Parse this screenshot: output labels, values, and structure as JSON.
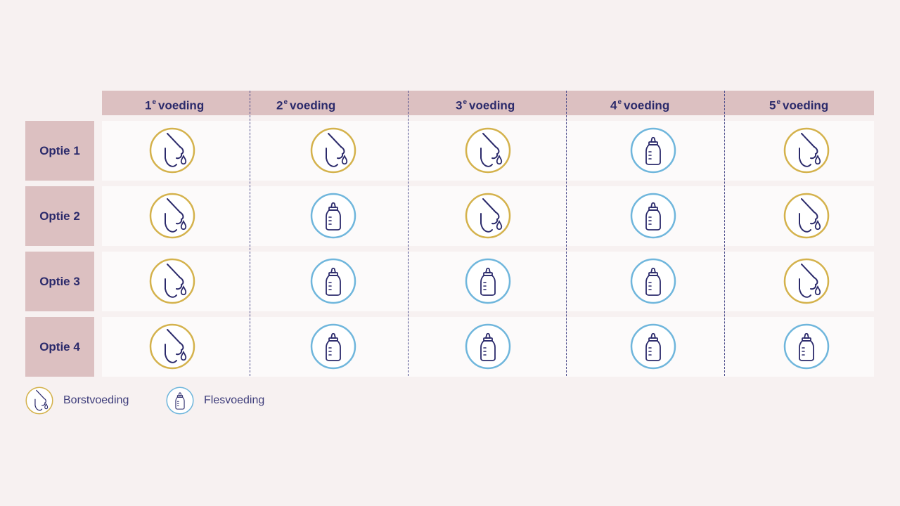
{
  "columns": [
    {
      "num": "1",
      "sup": "e",
      "label": "voeding"
    },
    {
      "num": "2",
      "sup": "e",
      "label": "voeding"
    },
    {
      "num": "3",
      "sup": "e",
      "label": "voeding"
    },
    {
      "num": "4",
      "sup": "e",
      "label": "voeding"
    },
    {
      "num": "5",
      "sup": "e",
      "label": "voeding"
    }
  ],
  "rows": [
    {
      "label": "Optie 1",
      "cells": [
        "breast",
        "breast",
        "breast",
        "bottle",
        "breast"
      ]
    },
    {
      "label": "Optie 2",
      "cells": [
        "breast",
        "bottle",
        "breast",
        "bottle",
        "breast"
      ]
    },
    {
      "label": "Optie 3",
      "cells": [
        "breast",
        "bottle",
        "bottle",
        "bottle",
        "breast"
      ]
    },
    {
      "label": "Optie 4",
      "cells": [
        "breast",
        "bottle",
        "bottle",
        "bottle",
        "bottle"
      ]
    }
  ],
  "legend": {
    "breast": {
      "label": "Borstvoeding",
      "icon": "breastfeeding-icon"
    },
    "bottle": {
      "label": "Flesvoeding",
      "icon": "bottle-feeding-icon"
    }
  },
  "colors": {
    "breast_ring": "#d4b24c",
    "bottle_ring": "#6fb6dc",
    "icon_line": "#2b2a6b",
    "header_bg": "#dcc0c1",
    "page_bg": "#f7f1f1"
  }
}
